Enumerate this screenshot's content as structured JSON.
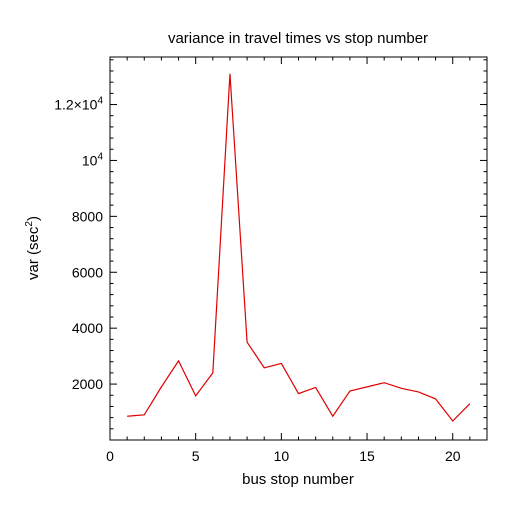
{
  "chart_data": {
    "type": "line",
    "title": "variance in travel times vs stop number",
    "xlabel": "bus stop number",
    "ylabel_main": "var (sec",
    "ylabel_sup": "2",
    "ylabel_close": ")",
    "xlim": [
      0,
      22
    ],
    "ylim": [
      0,
      13700
    ],
    "grid": false,
    "x_ticks": [
      {
        "value": 0,
        "label": "0"
      },
      {
        "value": 5,
        "label": "5"
      },
      {
        "value": 10,
        "label": "10"
      },
      {
        "value": 15,
        "label": "15"
      },
      {
        "value": 20,
        "label": "20"
      }
    ],
    "y_ticks": [
      {
        "value": 2000,
        "label": "2000"
      },
      {
        "value": 4000,
        "label": "4000"
      },
      {
        "value": 6000,
        "label": "6000"
      },
      {
        "value": 8000,
        "label": "8000"
      },
      {
        "value": 10000,
        "label": "10",
        "sup": "4"
      },
      {
        "value": 12000,
        "label": "1.2×10",
        "sup": "4"
      }
    ],
    "series": [
      {
        "color": "#e00000",
        "x": [
          1,
          2,
          3,
          4,
          5,
          6,
          7,
          8,
          9,
          10,
          11,
          12,
          13,
          14,
          15,
          16,
          17,
          18,
          19,
          20,
          21
        ],
        "y": [
          850,
          900,
          1900,
          2830,
          1580,
          2400,
          13100,
          3500,
          2580,
          2740,
          1660,
          1880,
          850,
          1750,
          1900,
          2050,
          1850,
          1720,
          1470,
          680,
          1300
        ]
      }
    ]
  }
}
